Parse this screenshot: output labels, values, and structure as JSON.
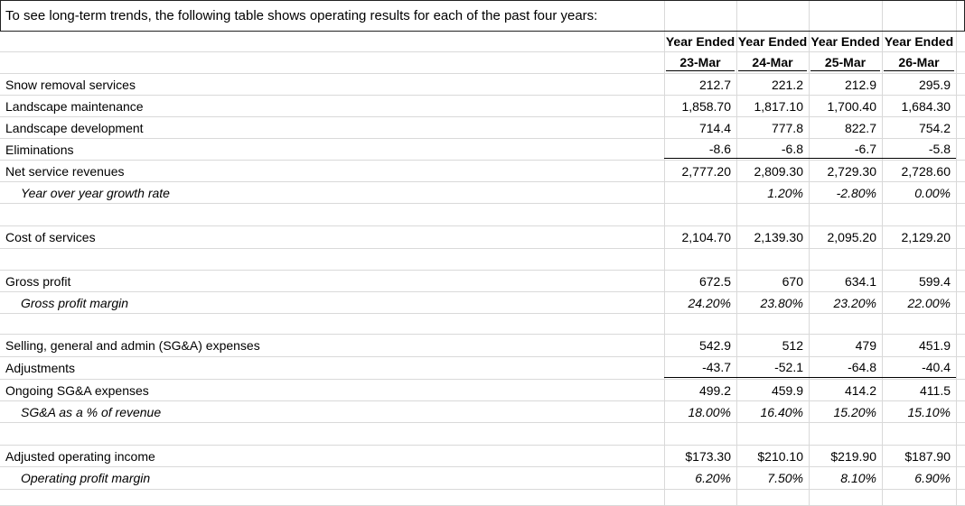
{
  "intro": "To see long-term trends, the following table shows operating results for each of the past four years:",
  "header": {
    "year_ended": [
      "Year Ended",
      "Year Ended",
      "Year Ended",
      "Year Ended"
    ],
    "periods": [
      "23-Mar",
      "24-Mar",
      "25-Mar",
      "26-Mar"
    ]
  },
  "rows": [
    {
      "label": "Snow removal services",
      "values": [
        "212.7",
        "221.2",
        "212.9",
        "295.9"
      ]
    },
    {
      "label": "Landscape maintenance",
      "values": [
        "1,858.70",
        "1,817.10",
        "1,700.40",
        "1,684.30"
      ]
    },
    {
      "label": "Landscape development",
      "values": [
        "714.4",
        "777.8",
        "822.7",
        "754.2"
      ]
    },
    {
      "label": "Eliminations",
      "values": [
        "-8.6",
        "-6.8",
        "-6.7",
        "-5.8"
      ]
    },
    {
      "label": "Net service revenues",
      "values": [
        "2,777.20",
        "2,809.30",
        "2,729.30",
        "2,728.60"
      ]
    },
    {
      "label": "Year over year growth rate",
      "values": [
        "",
        "1.20%",
        "-2.80%",
        "0.00%"
      ]
    },
    {
      "label": "Cost of services",
      "values": [
        "2,104.70",
        "2,139.30",
        "2,095.20",
        "2,129.20"
      ]
    },
    {
      "label": "Gross profit",
      "values": [
        "672.5",
        "670",
        "634.1",
        "599.4"
      ]
    },
    {
      "label": "Gross profit margin",
      "values": [
        "24.20%",
        "23.80%",
        "23.20%",
        "22.00%"
      ]
    },
    {
      "label": "Selling, general and admin (SG&A) expenses",
      "values": [
        "542.9",
        "512",
        "479",
        "451.9"
      ]
    },
    {
      "label": "Adjustments",
      "values": [
        "-43.7",
        "-52.1",
        "-64.8",
        "-40.4"
      ]
    },
    {
      "label": "Ongoing SG&A expenses",
      "values": [
        "499.2",
        "459.9",
        "414.2",
        "411.5"
      ]
    },
    {
      "label": "SG&A as a % of revenue",
      "values": [
        "18.00%",
        "16.40%",
        "15.20%",
        "15.10%"
      ]
    },
    {
      "label": "Adjusted operating income",
      "values": [
        "$173.30",
        "$210.10",
        "$219.90",
        "$187.90"
      ]
    },
    {
      "label": "Operating profit margin",
      "values": [
        "6.20%",
        "7.50%",
        "8.10%",
        "6.90%"
      ]
    }
  ]
}
